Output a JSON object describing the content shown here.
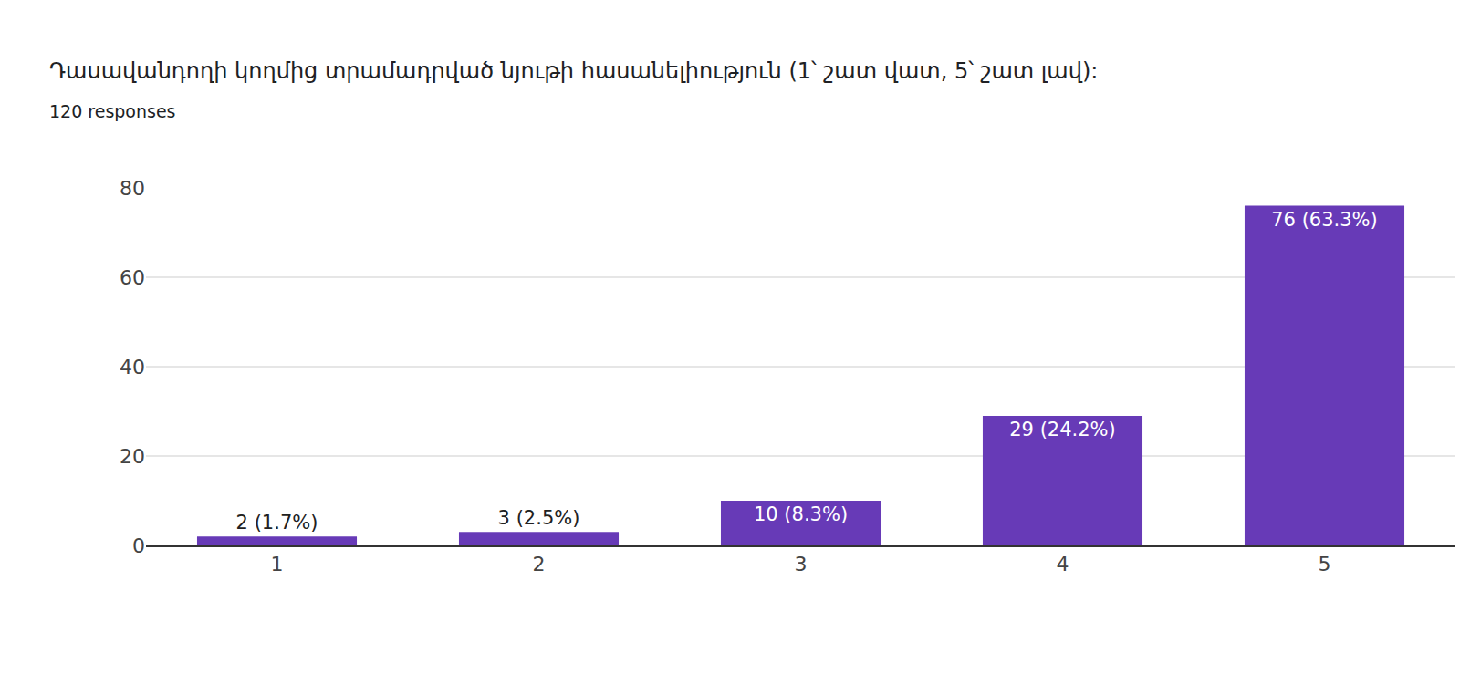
{
  "chart_data": {
    "type": "bar",
    "title": "Դասավանդողի կողմից տրամադրված նյութի հասանելիություն (1՝ շատ վատ, 5՝ շատ լավ):",
    "subtitle": "120 responses",
    "categories": [
      "1",
      "2",
      "3",
      "4",
      "5"
    ],
    "values": [
      2,
      3,
      10,
      29,
      76
    ],
    "value_labels": [
      "2 (1.7%)",
      "3 (2.5%)",
      "10 (8.3%)",
      "29 (24.2%)",
      "76 (63.3%)"
    ],
    "color": "#673ab7",
    "ylim": [
      0,
      80
    ],
    "yticks": [
      0,
      20,
      40,
      60,
      80
    ],
    "grid": true,
    "data_labels": true
  }
}
